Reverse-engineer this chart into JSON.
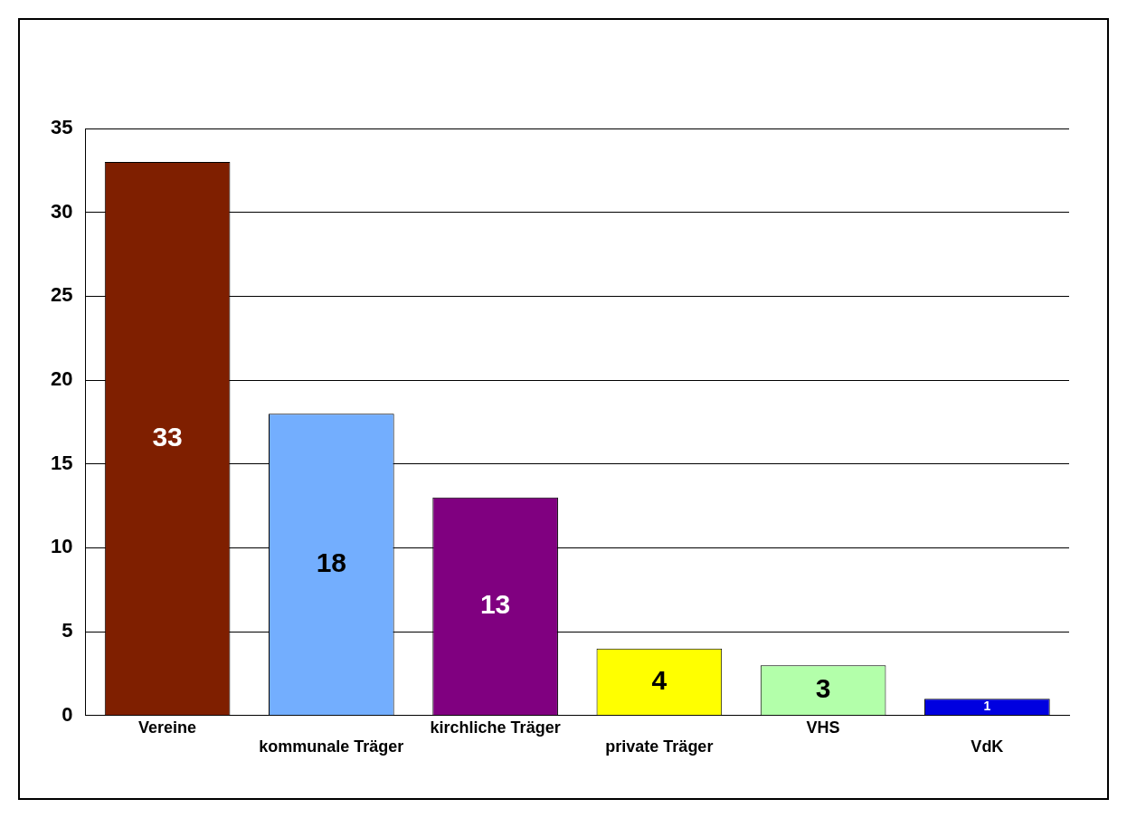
{
  "chart_data": {
    "type": "bar",
    "categories": [
      "Vereine",
      "kommunale Träger",
      "kirchliche Träger",
      "private Träger",
      "VHS",
      "VdK"
    ],
    "values": [
      33,
      18,
      13,
      4,
      3,
      1
    ],
    "colors": [
      "#7f1f00",
      "#73aefe",
      "#800080",
      "#ffff00",
      "#b3ffaa",
      "#0000e0"
    ],
    "ylim": [
      0,
      35
    ],
    "yticks": [
      0,
      5,
      10,
      15,
      20,
      25,
      30,
      35
    ],
    "grid": "y",
    "data_labels": true,
    "legend": false
  }
}
